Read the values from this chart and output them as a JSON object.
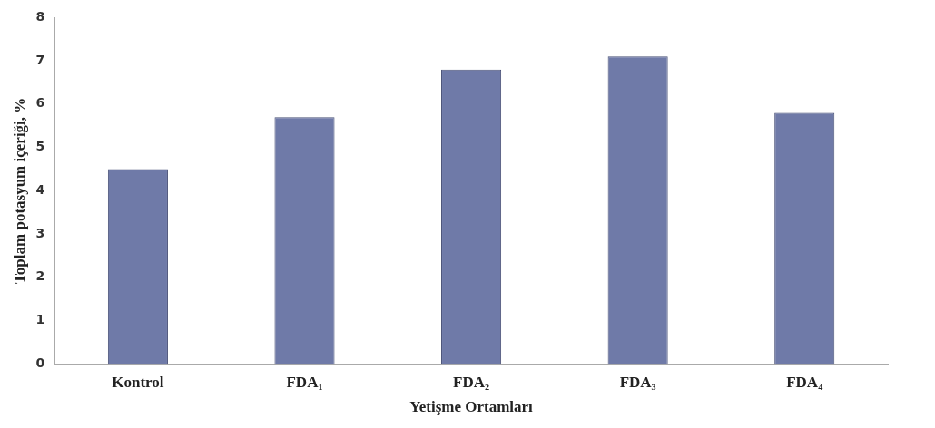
{
  "chart_data": {
    "type": "bar",
    "xlabel": "Yetişme Ortamları",
    "ylabel": "Toplam potasyum içeriği, %",
    "categories": [
      "Kontrol",
      "FDA₁",
      "FDA₂",
      "FDA₃",
      "FDA₄"
    ],
    "values": [
      4.5,
      5.7,
      6.8,
      7.1,
      5.8
    ],
    "color": "#6f7aa8",
    "ylim": [
      0,
      8
    ],
    "yticks": [
      0,
      1,
      2,
      3,
      4,
      5,
      6,
      7,
      8
    ],
    "grid": false,
    "legend": false
  }
}
